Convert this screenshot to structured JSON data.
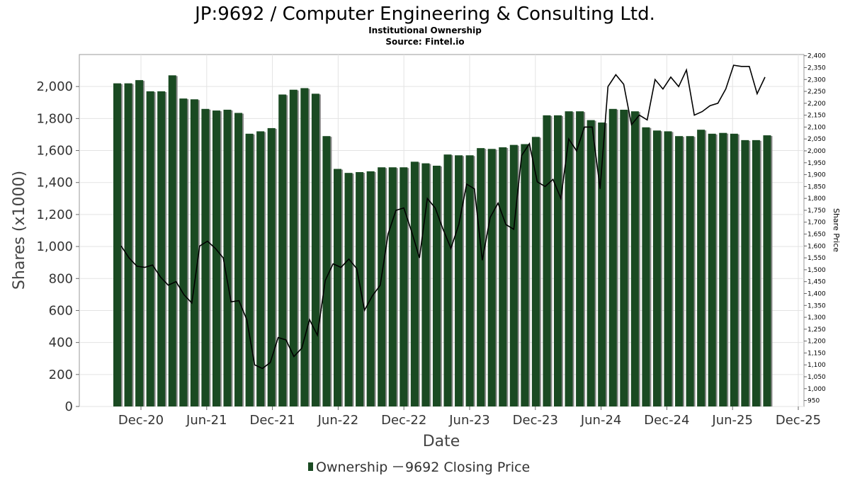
{
  "chart_data": {
    "type": "bar",
    "title": "JP:9692 / Computer Engineering & Consulting Ltd.",
    "subtitle": "Institutional Ownership",
    "source": "Source: Fintel.io",
    "xlabel": "Date",
    "ylabel": "Shares (x1000)",
    "y2label": "Share Price",
    "ylim": [
      0,
      2200
    ],
    "y2lim": [
      925,
      2405
    ],
    "yticks": [
      "0",
      "200",
      "400",
      "600",
      "800",
      "1,000",
      "1,200",
      "1,400",
      "1,600",
      "1,800",
      "2,000"
    ],
    "y2ticks": [
      "950",
      "1,000",
      "1,050",
      "1,100",
      "1,150",
      "1,200",
      "1,250",
      "1,300",
      "1,350",
      "1,400",
      "1,450",
      "1,500",
      "1,550",
      "1,600",
      "1,650",
      "1,700",
      "1,750",
      "1,800",
      "1,850",
      "1,900",
      "1,950",
      "2,000",
      "2,050",
      "2,100",
      "2,150",
      "2,200",
      "2,250",
      "2,300",
      "2,350",
      "2,400"
    ],
    "xticks": [
      "Dec-20",
      "Jun-21",
      "Dec-21",
      "Jun-22",
      "Dec-22",
      "Jun-23",
      "Dec-23",
      "Jun-24",
      "Dec-24",
      "Jun-25",
      "Dec-25"
    ],
    "legend_position": "bottom-center",
    "grid": true,
    "colors": {
      "bar": "#1a4a22",
      "bar_shadow": "#8a8a8a",
      "line": "#000000"
    },
    "series": [
      {
        "name": "Ownership",
        "type": "bar",
        "values": [
          2020,
          2020,
          2040,
          1970,
          1970,
          2070,
          1925,
          1920,
          1860,
          1850,
          1855,
          1835,
          1705,
          1720,
          1740,
          1950,
          1980,
          1990,
          1955,
          1690,
          1485,
          1460,
          1465,
          1470,
          1495,
          1495,
          1495,
          1530,
          1520,
          1505,
          1575,
          1570,
          1570,
          1615,
          1610,
          1620,
          1635,
          1640,
          1685,
          1820,
          1820,
          1845,
          1845,
          1790,
          1775,
          1860,
          1855,
          1845,
          1745,
          1725,
          1720,
          1690,
          1690,
          1730,
          1705,
          1710,
          1705,
          1665,
          1665,
          1695
        ]
      },
      {
        "name": "9692 Closing Price",
        "type": "line",
        "values": [
          1600,
          1550,
          1515,
          1510,
          1520,
          1470,
          1435,
          1450,
          1395,
          1360,
          1600,
          1620,
          1590,
          1550,
          1365,
          1370,
          1290,
          1100,
          1085,
          1110,
          1215,
          1205,
          1135,
          1170,
          1290,
          1225,
          1455,
          1525,
          1510,
          1545,
          1505,
          1330,
          1390,
          1435,
          1650,
          1750,
          1760,
          1660,
          1550,
          1800,
          1760,
          1670,
          1590,
          1690,
          1860,
          1840,
          1540,
          1720,
          1780,
          1690,
          1670,
          1980,
          2030,
          1870,
          1850,
          1880,
          1800,
          2050,
          2000,
          2100,
          2100,
          1840,
          2270,
          2320,
          2280,
          2110,
          2150,
          2130,
          2300,
          2260,
          2310,
          2270,
          2340,
          2150,
          2165,
          2190,
          2200,
          2260,
          2360,
          2355,
          2355,
          2240,
          2310
        ]
      }
    ]
  }
}
